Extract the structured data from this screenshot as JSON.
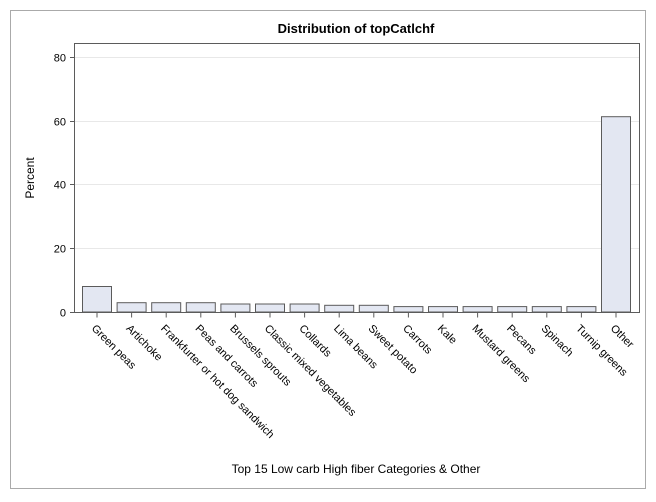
{
  "chart_data": {
    "type": "bar",
    "title": "Distribution of topCatlchf",
    "xlabel": "Top 15 Low carb High fiber Categories & Other",
    "ylabel": "Percent",
    "ylim": [
      0,
      84
    ],
    "yticks": [
      0,
      20,
      40,
      60,
      80
    ],
    "grid": true,
    "categories": [
      "Green peas",
      "Artichoke",
      "Frankfurter or hot dog sandwich",
      "Peas and carrots",
      "Brussels sprouts",
      "Classic mixed vegetables",
      "Collards",
      "Lima beans",
      "Sweet potato",
      "Carrots",
      "Kale",
      "Mustard greens",
      "Pecans",
      "Spinach",
      "Turnip greens",
      "Other"
    ],
    "values": [
      8.0,
      2.9,
      2.9,
      2.9,
      2.5,
      2.5,
      2.5,
      2.1,
      2.1,
      1.7,
      1.7,
      1.7,
      1.7,
      1.7,
      1.7,
      61.2
    ],
    "colors": {
      "bar_fill": "#e3e7f2",
      "bar_stroke": "#5b5b5b",
      "grid": "#e8e8e8",
      "frame": "#aaaaaa"
    }
  }
}
